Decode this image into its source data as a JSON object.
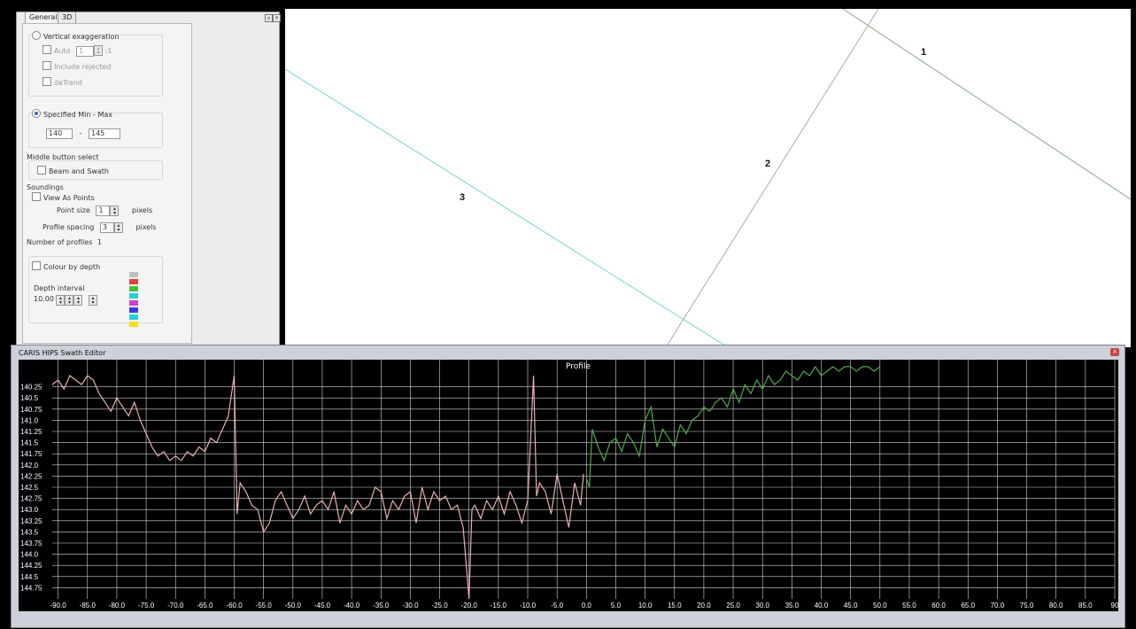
{
  "panel": {
    "tabs": [
      "General",
      "3D"
    ],
    "vertical_exaggeration": "Vertical exaggeration",
    "auto_label": "Auto",
    "auto_value": "1",
    "ratio_suffix": ":1",
    "include_rejected": "Include rejected",
    "detrend": "deTrend",
    "specified_min_max": "Specified Min - Max",
    "min_value": "140",
    "range_dash": "-",
    "max_value": "145",
    "middle_button_select": "Middle button select",
    "beam_and_swath": "Beam and Swath",
    "soundings": "Soundings",
    "view_as_points": "View As Points",
    "point_size_label": "Point size",
    "point_size_value": "1",
    "pixels_1": "pixels",
    "profile_spacing_label": "Profile spacing",
    "profile_spacing_value": "3",
    "pixels_2": "pixels",
    "number_of_profiles_label": "Number of profiles",
    "number_of_profiles_value": "1",
    "colour_by_depth": "Colour by depth",
    "depth_interval": "Depth interval",
    "depth_interval_value": "10.00",
    "depth_colors": [
      "#bfbfbf",
      "#e0403f",
      "#3fbf3f",
      "#2ccfcf",
      "#d03fd0",
      "#3a3ae0",
      "#20d0e0",
      "#f0e020"
    ]
  },
  "map": {
    "line_labels": [
      "1",
      "2",
      "3"
    ],
    "line_colors": {
      "1": "#8aa88a",
      "2": "#b0a8a0",
      "3": "#6fd6d0"
    }
  },
  "swath_editor": {
    "title": "CARIS HIPS Swath Editor",
    "close_icon": "close-icon"
  },
  "chart_data": {
    "type": "line",
    "title": "Profile",
    "y_tick_labels": [
      "140.25",
      "140.5",
      "140.75",
      "141.0",
      "141.25",
      "141.5",
      "141.75",
      "142.0",
      "142.25",
      "142.5",
      "142.75",
      "143.0",
      "143.25",
      "143.5",
      "143.75",
      "144.0",
      "144.25",
      "144.5",
      "144.75"
    ],
    "x_tick_labels": [
      "-90.0",
      "-85.0",
      "-80.0",
      "-75.0",
      "-70.0",
      "-65.0",
      "-60.0",
      "-55.0",
      "-50.0",
      "-45.0",
      "-40.0",
      "-35.0",
      "-30.0",
      "-25.0",
      "-20.0",
      "-15.0",
      "-10.0",
      "-5.0",
      "0.0",
      "5.0",
      "10.0",
      "15.0",
      "20.0",
      "25.0",
      "30.0",
      "35.0",
      "40.0",
      "45.0",
      "50.0",
      "55.0",
      "60.0",
      "65.0",
      "70.0",
      "75.0",
      "80.0",
      "85.0",
      "90"
    ],
    "xlim": [
      -91,
      90
    ],
    "ylim": [
      145.0,
      140.0
    ],
    "grid": true,
    "series": [
      {
        "color": "#e8b0b0",
        "x": [
          -91,
          -90,
          -89,
          -88,
          -87,
          -86,
          -85,
          -84,
          -83,
          -82,
          -81,
          -80,
          -79,
          -78,
          -77,
          -76,
          -75,
          -74,
          -73,
          -72,
          -71,
          -70,
          -69,
          -68,
          -67,
          -66,
          -65,
          -64,
          -63,
          -62,
          -61,
          -60,
          -59.5,
          -59,
          -58,
          -57,
          -56,
          -55,
          -54,
          -53,
          -52,
          -51,
          -50,
          -49,
          -48,
          -47,
          -46,
          -45,
          -44,
          -43,
          -42,
          -41,
          -40,
          -39,
          -38,
          -37,
          -36,
          -35,
          -34,
          -33,
          -32,
          -31,
          -30,
          -29,
          -28,
          -27,
          -26,
          -25,
          -24,
          -23,
          -22,
          -21,
          -20,
          -19.5,
          -19,
          -18,
          -17,
          -16,
          -15,
          -14,
          -13,
          -12,
          -11,
          -10,
          -9,
          -8.5,
          -8,
          -7,
          -6,
          -5,
          -4,
          -3,
          -2,
          -1,
          -0.5
        ],
        "y": [
          140.2,
          140.1,
          140.3,
          140.0,
          140.1,
          140.2,
          140.0,
          140.1,
          140.4,
          140.6,
          140.8,
          140.5,
          140.7,
          140.9,
          140.6,
          141.0,
          141.3,
          141.6,
          141.8,
          141.7,
          141.9,
          141.8,
          141.9,
          141.7,
          141.8,
          141.6,
          141.7,
          141.4,
          141.5,
          141.2,
          140.9,
          140.0,
          143.1,
          142.4,
          142.6,
          142.9,
          143.0,
          143.5,
          143.3,
          142.8,
          142.6,
          142.9,
          143.2,
          143.0,
          142.7,
          143.1,
          142.9,
          142.8,
          143.0,
          142.6,
          143.3,
          142.9,
          143.1,
          142.8,
          143.0,
          142.9,
          142.5,
          142.6,
          143.2,
          142.8,
          143.0,
          142.7,
          142.6,
          143.3,
          142.5,
          143.0,
          142.6,
          142.8,
          142.7,
          143.0,
          142.9,
          143.4,
          145.0,
          143.0,
          142.9,
          143.2,
          142.8,
          143.0,
          142.7,
          143.1,
          142.6,
          142.9,
          143.3,
          142.8,
          140.0,
          142.7,
          142.4,
          142.6,
          143.1,
          142.2,
          142.8,
          143.4,
          142.4,
          142.9,
          142.2
        ]
      },
      {
        "color": "#4fa84f",
        "x": [
          0,
          0.5,
          1,
          2,
          3,
          4,
          5,
          6,
          7,
          8,
          9,
          10,
          11,
          12,
          13,
          14,
          15,
          16,
          17,
          18,
          19,
          20,
          21,
          22,
          23,
          24,
          25,
          26,
          27,
          28,
          29,
          30,
          31,
          32,
          33,
          34,
          35,
          36,
          37,
          38,
          39,
          40,
          41,
          42,
          43,
          44,
          45,
          46,
          47,
          48,
          49,
          50
        ],
        "y": [
          142.3,
          142.5,
          141.2,
          141.6,
          141.9,
          141.5,
          141.4,
          141.7,
          141.3,
          141.5,
          141.8,
          141.0,
          140.7,
          141.6,
          141.2,
          141.4,
          141.6,
          141.1,
          141.3,
          141.0,
          140.9,
          140.7,
          140.8,
          140.6,
          140.5,
          140.7,
          140.3,
          140.6,
          140.2,
          140.4,
          140.1,
          140.3,
          140.0,
          140.2,
          140.1,
          139.9,
          140.0,
          140.1,
          139.9,
          140.0,
          139.8,
          140.0,
          139.9,
          139.8,
          139.9,
          139.8,
          139.7,
          139.9,
          139.8,
          139.7,
          139.9,
          139.8
        ]
      }
    ]
  }
}
